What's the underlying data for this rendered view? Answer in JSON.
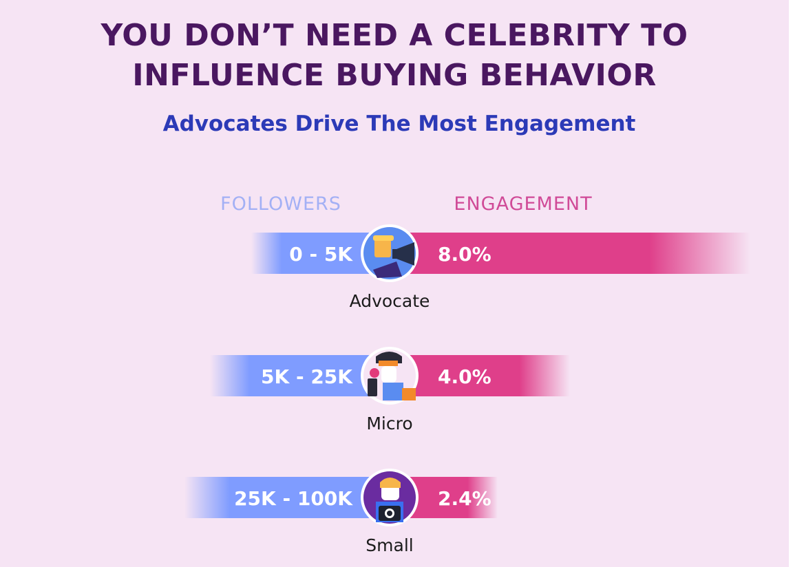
{
  "title_lines": [
    "YOU DON’T NEED A CELEBRITY TO",
    "INFLUENCE BUYING BEHAVIOR"
  ],
  "subtitle": "Advocates Drive The Most Engagement",
  "colors": {
    "background": "#f6e4f4",
    "title": "#4a1760",
    "subtitle": "#2c3ab7",
    "followers": "#7f9cff",
    "engagement": "#df3f8a",
    "followers_header": "#a3b0f5",
    "engagement_header": "#d04a97",
    "tier_label": "#1b1b1b"
  },
  "chart_data": {
    "type": "bar",
    "layout": "diverging",
    "column_headers": {
      "left": "FOLLOWERS",
      "right": "ENGAGEMENT"
    },
    "categories": [
      "Advocate",
      "Micro",
      "Small"
    ],
    "followers_labels": [
      "0 - 5K",
      "5K - 25K",
      "25K - 100K"
    ],
    "series": [
      {
        "name": "ENGAGEMENT",
        "values": [
          8.0,
          4.0,
          2.4
        ],
        "labels": [
          "8.0%",
          "4.0%",
          "2.4%"
        ],
        "unit": "%"
      }
    ],
    "icons": [
      "advocate-megaphone-avatar-icon",
      "micro-phone-avatar-icon",
      "small-camera-avatar-icon"
    ]
  }
}
